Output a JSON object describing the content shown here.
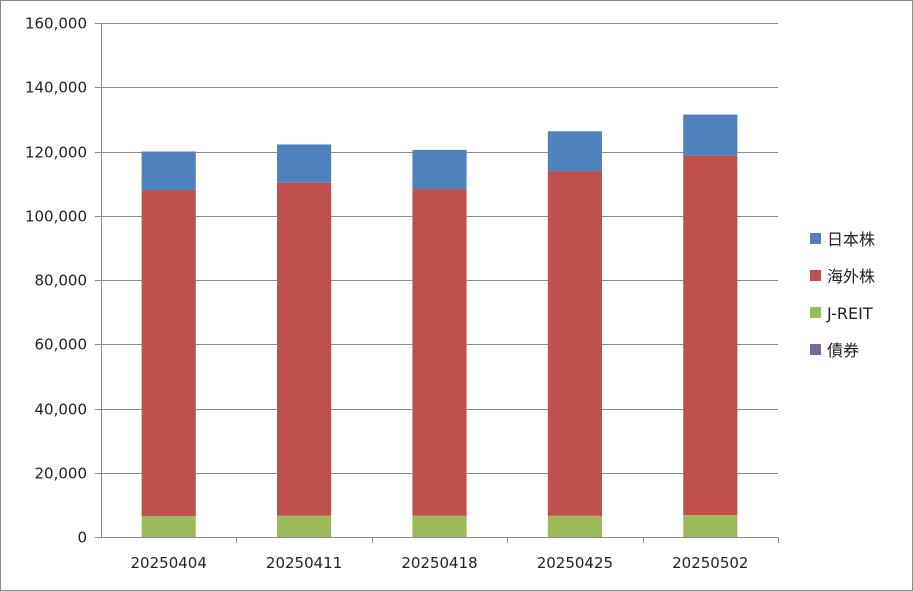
{
  "chart_data": {
    "type": "bar",
    "stacked": true,
    "categories": [
      "20250404",
      "20250411",
      "20250418",
      "20250425",
      "20250502"
    ],
    "series": [
      {
        "name": "債券",
        "color": "#8064a2",
        "values": [
          0,
          0,
          0,
          0,
          0
        ]
      },
      {
        "name": "J-REIT",
        "color": "#9bbb59",
        "values": [
          6500,
          6600,
          6600,
          6600,
          6800
        ]
      },
      {
        "name": "海外株",
        "color": "#c0504d",
        "values": [
          101500,
          103700,
          101700,
          107300,
          111900
        ]
      },
      {
        "name": "日本株",
        "color": "#4f81bd",
        "values": [
          12000,
          11900,
          12200,
          12400,
          12800
        ]
      }
    ],
    "legend_order": [
      "日本株",
      "海外株",
      "J-REIT",
      "債券"
    ],
    "y_ticks": [
      "0",
      "20,000",
      "40,000",
      "60,000",
      "80,000",
      "100,000",
      "120,000",
      "140,000",
      "160,000"
    ],
    "ylim": [
      0,
      160000
    ],
    "grid": true,
    "legend_position": "right"
  }
}
